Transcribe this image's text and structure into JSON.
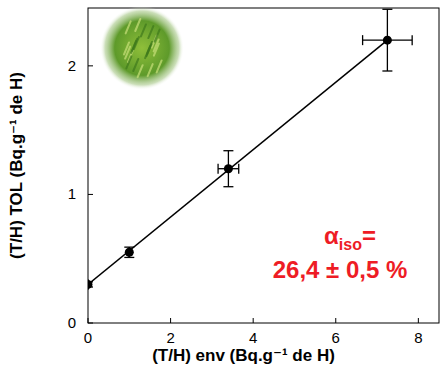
{
  "chart_data": {
    "type": "scatter",
    "x_label": "(T/H) env (Bq.g⁻¹ de H)",
    "y_label": "(T/H) TOL (Bq.g⁻¹ de H)",
    "xlim": [
      0,
      8.5
    ],
    "ylim": [
      0,
      2.45
    ],
    "xticks": [
      0,
      2,
      4,
      6,
      8
    ],
    "yticks": [
      0,
      1,
      2
    ],
    "grid": false,
    "annotation": {
      "symbol": "α",
      "subscript": "iso",
      "suffix": "=",
      "text": "26,4 ± 0,5 %",
      "color": "#ee1c25"
    },
    "series": [
      {
        "type": "line",
        "color": "#000000",
        "line_style": "solid",
        "x": [
          0,
          7.25
        ],
        "values": [
          0.3,
          2.2
        ]
      },
      {
        "type": "scatter",
        "color": "#000000",
        "marker": "circle",
        "x": [
          0,
          1,
          3.4,
          7.25
        ],
        "values": [
          0.3,
          0.55,
          1.2,
          2.2
        ],
        "x_errors": [
          0,
          0,
          0.25,
          0.6
        ],
        "errors": [
          0.02,
          0.04,
          0.14,
          0.24
        ]
      }
    ]
  }
}
